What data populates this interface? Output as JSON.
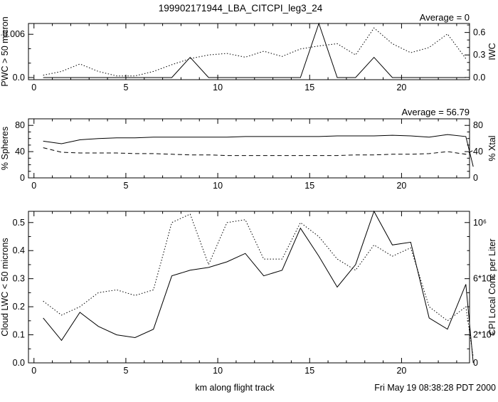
{
  "title": "199902171944_LBA_CITCPI_leg3_24",
  "footer": {
    "xlabel": "km along flight track",
    "timestamp": "Fri May 19 08:38:28 PDT 2000"
  },
  "colors": {
    "line": "#000000",
    "background": "#ffffff"
  },
  "chart_data": [
    {
      "type": "line",
      "name": "pwc-iwc",
      "annotation": "Average = 0",
      "x_range": [
        -0.3,
        23.7
      ],
      "x_ticks": [
        0,
        5,
        10,
        15,
        20
      ],
      "x_minor_step": 1,
      "left_axis": {
        "label": "PWC > 50 micron",
        "range": [
          -0.0003,
          0.0075
        ],
        "minor": 0.002,
        "ticks": [
          [
            0,
            "0.0"
          ],
          [
            0.006,
            "0.006"
          ]
        ]
      },
      "right_axis": {
        "label": "IWC",
        "range": [
          -0.03,
          0.72
        ],
        "minor": 0.1,
        "ticks": [
          [
            0,
            "0.0"
          ],
          [
            0.3,
            "0.3"
          ],
          [
            0.6,
            "0.6"
          ]
        ]
      },
      "series": [
        {
          "name": "PWC > 50 micron",
          "style": "solid",
          "axis": "left",
          "x": [
            0.5,
            1.5,
            2.5,
            3.5,
            4.5,
            5.5,
            6.5,
            7.5,
            8.5,
            9.5,
            10.5,
            11.5,
            12.5,
            13.5,
            14.5,
            15.5,
            16.5,
            17.5,
            18.5,
            19.5,
            20.5,
            21.5,
            22.5,
            23.5
          ],
          "y": [
            0,
            0,
            0,
            0,
            0,
            0,
            0,
            0,
            0.0028,
            0,
            0,
            0,
            0,
            0,
            0,
            0.0075,
            0,
            0,
            0.0028,
            0,
            0,
            0,
            0,
            0
          ]
        },
        {
          "name": "IWC",
          "style": "dotted",
          "axis": "right",
          "x": [
            0.5,
            1.5,
            2.5,
            3.5,
            4.5,
            5.5,
            6.5,
            7.5,
            8.5,
            9.5,
            10.5,
            11.5,
            12.5,
            13.5,
            14.5,
            15.5,
            16.5,
            17.5,
            18.5,
            19.5,
            20.5,
            21.5,
            22.5,
            23.5
          ],
          "y": [
            0.03,
            0.08,
            0.18,
            0.08,
            0.02,
            0.02,
            0.08,
            0.17,
            0.25,
            0.3,
            0.32,
            0.27,
            0.35,
            0.28,
            0.38,
            0.42,
            0.45,
            0.3,
            0.66,
            0.45,
            0.33,
            0.4,
            0.58,
            0.25
          ]
        }
      ]
    },
    {
      "type": "line",
      "name": "spheres-xtal",
      "annotation": "Average = 56.79",
      "x_range": [
        -0.3,
        23.7
      ],
      "x_ticks": [
        0,
        5,
        10,
        15,
        20
      ],
      "x_minor_step": 1,
      "left_axis": {
        "label": "% Spheres",
        "range": [
          0,
          90
        ],
        "minor": 10,
        "ticks": [
          [
            0,
            "0"
          ],
          [
            40,
            "40"
          ],
          [
            80,
            "80"
          ]
        ]
      },
      "right_axis": {
        "label": "% Xtal",
        "range": [
          0,
          90
        ],
        "minor": 10,
        "ticks": [
          [
            0,
            "0"
          ],
          [
            40,
            "40"
          ],
          [
            80,
            "80"
          ]
        ]
      },
      "series": [
        {
          "name": "% Spheres",
          "style": "solid",
          "axis": "left",
          "x": [
            0.5,
            1.5,
            2.5,
            3.5,
            4.5,
            5.5,
            6.5,
            7.5,
            8.5,
            9.5,
            10.5,
            11.5,
            12.5,
            13.5,
            14.5,
            15.5,
            16.5,
            17.5,
            18.5,
            19.5,
            20.5,
            21.5,
            22.5,
            23.5,
            23.9
          ],
          "y": [
            56,
            52,
            58,
            60,
            61,
            61,
            62,
            62,
            62,
            62,
            62,
            63,
            63,
            63,
            63,
            63,
            64,
            64,
            64,
            65,
            64,
            62,
            66,
            63,
            17
          ]
        },
        {
          "name": "% Xtal",
          "style": "dashed",
          "axis": "right",
          "x": [
            0.5,
            1.5,
            2.5,
            3.5,
            4.5,
            5.5,
            6.5,
            7.5,
            8.5,
            9.5,
            10.5,
            11.5,
            12.5,
            13.5,
            14.5,
            15.5,
            16.5,
            17.5,
            18.5,
            19.5,
            20.5,
            21.5,
            22.5,
            23.5,
            23.9
          ],
          "y": [
            46,
            39,
            38,
            38,
            38,
            37,
            37,
            36,
            35,
            35,
            34,
            34,
            34,
            34,
            34,
            34,
            34,
            35,
            35,
            36,
            36,
            37,
            40,
            36,
            42
          ]
        }
      ]
    },
    {
      "type": "line",
      "name": "lwc-cpi-conc",
      "annotation": "",
      "x_range": [
        -0.3,
        23.7
      ],
      "x_ticks": [
        0,
        5,
        10,
        15,
        20
      ],
      "x_minor_step": 1,
      "left_axis": {
        "label": "Cloud LWC < 50 microns",
        "range": [
          0,
          0.54
        ],
        "minor": 0.05,
        "ticks": [
          [
            0,
            "0.0"
          ],
          [
            0.1,
            "0.1"
          ],
          [
            0.2,
            "0.2"
          ],
          [
            0.3,
            "0.3"
          ],
          [
            0.4,
            "0.4"
          ],
          [
            0.5,
            "0.5"
          ]
        ]
      },
      "right_axis": {
        "label": "CPI Local Conc per Liter",
        "range": [
          0,
          1080000
        ],
        "minor": 100000,
        "ticks": [
          [
            0,
            "0"
          ],
          [
            200000,
            "2*10⁵"
          ],
          [
            600000,
            "6*10⁵"
          ],
          [
            1000000,
            "10⁶"
          ]
        ]
      },
      "series": [
        {
          "name": "Cloud LWC < 50 microns",
          "style": "solid",
          "axis": "left",
          "x": [
            0.5,
            1.5,
            2.5,
            3.5,
            4.5,
            5.5,
            6.5,
            7.5,
            8.5,
            9.5,
            10.5,
            11.5,
            12.5,
            13.5,
            14.5,
            15.5,
            16.5,
            17.5,
            18.5,
            19.5,
            20.5,
            21.5,
            22.5,
            23.5,
            23.9
          ],
          "y": [
            0.16,
            0.08,
            0.18,
            0.13,
            0.1,
            0.09,
            0.12,
            0.31,
            0.33,
            0.34,
            0.36,
            0.39,
            0.31,
            0.33,
            0.48,
            0.38,
            0.27,
            0.35,
            0.54,
            0.42,
            0.43,
            0.16,
            0.12,
            0.28,
            0.0
          ]
        },
        {
          "name": "CPI Local Conc per Liter",
          "style": "dotted",
          "axis": "right",
          "x": [
            0.5,
            1.5,
            2.5,
            3.5,
            4.5,
            5.5,
            6.5,
            7.5,
            8.5,
            9.5,
            10.5,
            11.5,
            12.5,
            13.5,
            14.5,
            15.5,
            16.5,
            17.5,
            18.5,
            19.5,
            20.5,
            21.5,
            22.5,
            23.5,
            23.9
          ],
          "y": [
            440000,
            340000,
            400000,
            500000,
            520000,
            480000,
            520000,
            1000000,
            1060000,
            700000,
            1000000,
            1020000,
            740000,
            740000,
            1000000,
            900000,
            740000,
            660000,
            840000,
            760000,
            820000,
            400000,
            300000,
            400000,
            40000
          ]
        }
      ]
    }
  ]
}
